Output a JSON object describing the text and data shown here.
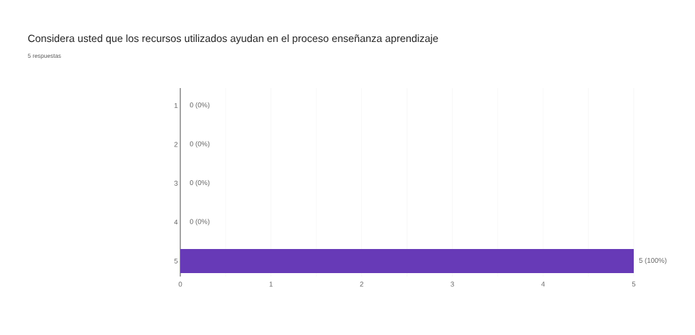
{
  "chart_data": {
    "type": "bar",
    "orientation": "horizontal",
    "title": "Considera usted que los recursos utilizados ayudan en el proceso enseñanza aprendizaje",
    "subtitle": "5 respuestas",
    "categories": [
      "1",
      "2",
      "3",
      "4",
      "5"
    ],
    "values": [
      0,
      0,
      0,
      0,
      5
    ],
    "color": "#673ab7",
    "value_labels": [
      "0 (0%)",
      "0 (0%)",
      "0 (0%)",
      "0 (0%)",
      "5 (100%)"
    ],
    "xlim": [
      0,
      5
    ],
    "xticks": [
      0,
      1,
      2,
      3,
      4,
      5
    ],
    "grid": "x"
  }
}
